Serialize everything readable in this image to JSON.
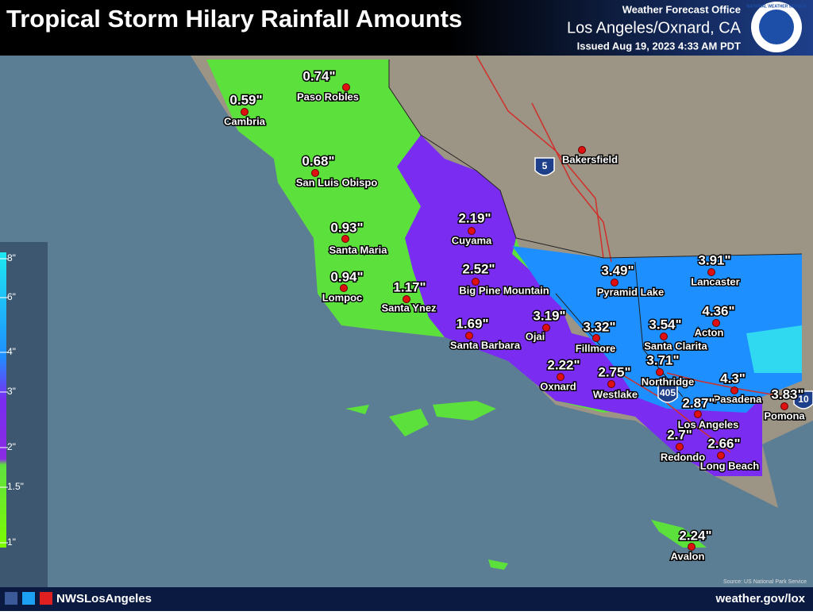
{
  "header": {
    "title": "Tropical Storm Hilary Rainfall Amounts",
    "office": "Weather Forecast Office",
    "location": "Los Angeles/Oxnard, CA",
    "issued": "Issued Aug 19, 2023 4:33 AM PDT",
    "logo": "NATIONAL WEATHER SERVICE"
  },
  "legend": {
    "ticks": [
      "8\"",
      "6\"",
      "4\"",
      "3\"",
      "2\"",
      "1.5\"",
      "1\""
    ]
  },
  "stations": [
    {
      "name": "Paso Robles",
      "amount": "0.74\""
    },
    {
      "name": "Cambria",
      "amount": "0.59\""
    },
    {
      "name": "San Luis Obispo",
      "amount": "0.68\""
    },
    {
      "name": "Bakersfield"
    },
    {
      "name": "Santa Maria",
      "amount": "0.93\""
    },
    {
      "name": "Cuyama",
      "amount": "2.19\""
    },
    {
      "name": "Lompoc",
      "amount": "0.94\""
    },
    {
      "name": "Santa Ynez",
      "amount": "1.17\""
    },
    {
      "name": "Big Pine Mountain",
      "amount": "2.52\""
    },
    {
      "name": "Santa Barbara",
      "amount": "1.69\""
    },
    {
      "name": "Ojai",
      "amount": "3.19\""
    },
    {
      "name": "Fillmore",
      "amount": "3.32\""
    },
    {
      "name": "Pyramid Lake",
      "amount": "3.49\""
    },
    {
      "name": "Lancaster",
      "amount": "3.91\""
    },
    {
      "name": "Santa Clarita",
      "amount": "3.54\""
    },
    {
      "name": "Acton",
      "amount": "4.36\""
    },
    {
      "name": "Northridge",
      "amount": "3.71\""
    },
    {
      "name": "Oxnard",
      "amount": "2.22\""
    },
    {
      "name": "Westlake",
      "amount": "2.75\""
    },
    {
      "name": "Pasadena",
      "amount": "4.3\""
    },
    {
      "name": "Pomona",
      "amount": "3.83\""
    },
    {
      "name": "Los Angeles",
      "amount": "2.87\""
    },
    {
      "name": "Redondo",
      "amount": "2.7\""
    },
    {
      "name": "Long Beach",
      "amount": "2.66\""
    },
    {
      "name": "Avalon",
      "amount": "2.24\""
    }
  ],
  "shields": [
    "5",
    "405",
    "10"
  ],
  "footer": {
    "social": "NWSLosAngeles",
    "website": "weather.gov/lox",
    "source": "Source: US National Park Service"
  }
}
